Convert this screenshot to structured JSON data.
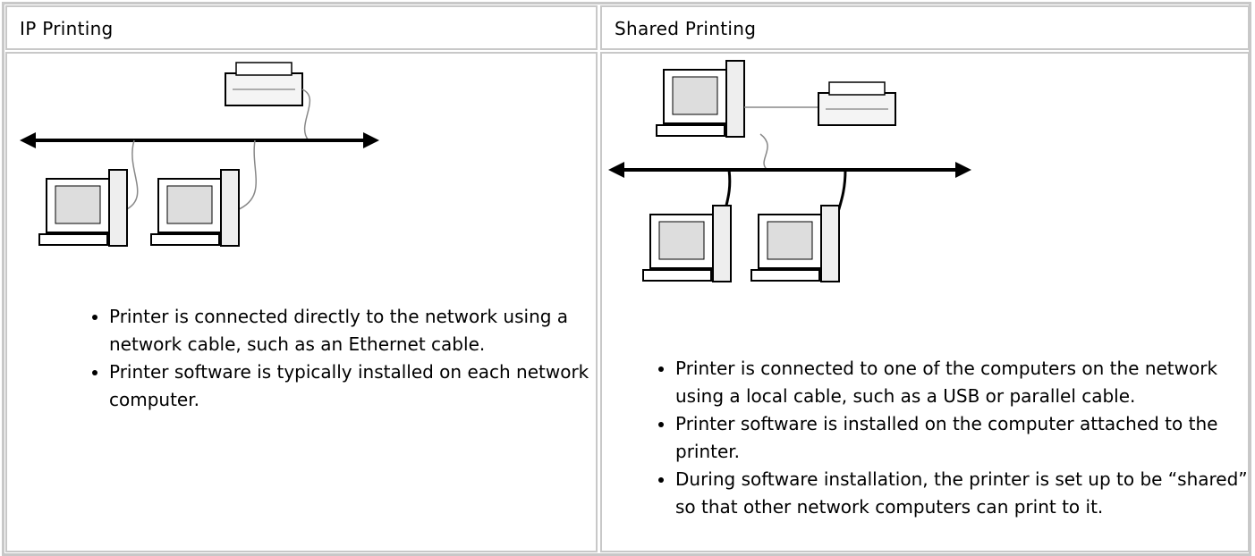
{
  "table": {
    "headers": [
      "IP Printing",
      "Shared Printing"
    ],
    "cells": [
      {
        "bullets": [
          "Printer is connected directly to the network using a network cable, such as an Ethernet cable.",
          "Printer software is typically installed on each network computer."
        ]
      },
      {
        "bullets": [
          "Printer is connected to one of the computers on the network using a local cable, such as a USB or parallel cable.",
          "Printer software is installed on the computer attached to the printer.",
          "During software installation, the printer is set up to be “shared” so that other network computers can print to it."
        ]
      }
    ]
  }
}
